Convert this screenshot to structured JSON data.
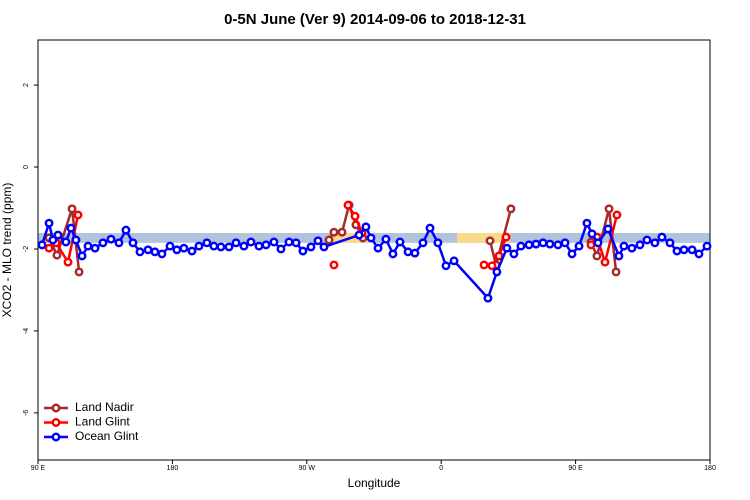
{
  "chart_data": {
    "type": "line",
    "title": "0-5N June (Ver 9)   2014-09-06 to 2018-12-31",
    "x_label": "Longitude",
    "y_label": "XCO2 - MLO trend (ppm)",
    "xlim": [
      90,
      540
    ],
    "ylim": [
      -7.15,
      3.1
    ],
    "xticks": [
      {
        "value": 90,
        "label": "90 E"
      },
      {
        "value": 180,
        "label": "180"
      },
      {
        "value": 270,
        "label": "90 W"
      },
      {
        "value": 360,
        "label": "0"
      },
      {
        "value": 450,
        "label": "90 E"
      },
      {
        "value": 540,
        "label": "180"
      }
    ],
    "yticks": [
      -6,
      -4,
      -2,
      0,
      2
    ],
    "legend": "bottom-left",
    "bands": [
      {
        "color": "#b0c4de",
        "x": [
          90,
          540
        ],
        "y": [
          -1.61,
          -1.85
        ]
      },
      {
        "color": "#fbd98a",
        "x": [
          285.5,
          312.3
        ],
        "y": [
          -1.61,
          -1.85
        ]
      },
      {
        "color": "#fbd98a",
        "x": [
          370.6,
          406.0
        ],
        "y": [
          -1.61,
          -1.85
        ]
      }
    ],
    "series": [
      {
        "name": "Land Nadir",
        "color": "#a52a2a",
        "x": [
          97.4,
          102.7,
          112.8,
          117.5,
          null,
          284.9,
          288.2,
          293.6,
          298.3,
          302.9,
          307.6,
          null,
          392.7,
          396.7,
          406.7,
          null,
          460.3,
          464.3,
          472.4,
          477.1
        ],
        "values": [
          -1.73,
          -2.15,
          -1.02,
          -2.56,
          null,
          -1.78,
          -1.59,
          -1.59,
          -0.93,
          -1.41,
          -1.73,
          null,
          -1.8,
          -2.39,
          -1.02,
          null,
          -1.83,
          -2.17,
          -1.02,
          -2.56
        ]
      },
      {
        "name": "Land Glint",
        "color": "#ff0000",
        "x": [
          97.4,
          102.1,
          110.1,
          116.8,
          null,
          288.2,
          null,
          297.6,
          302.3,
          307.0,
          null,
          388.7,
          394.0,
          398.7,
          403.4,
          null,
          460.3,
          464.3,
          469.7,
          477.7
        ],
        "values": [
          -1.98,
          -1.85,
          -2.32,
          -1.17,
          null,
          -2.39,
          null,
          -0.93,
          -1.2,
          -1.61,
          null,
          -2.39,
          -2.41,
          -2.17,
          -1.71,
          null,
          -1.9,
          -1.71,
          -2.32,
          -1.17
        ]
      },
      {
        "name": "Ocean Glint",
        "color": "#0000ff",
        "x": [
          92.7,
          97.4,
          100.0,
          103.4,
          108.7,
          112.1,
          115.4,
          119.5,
          123.5,
          128.2,
          133.5,
          138.9,
          144.2,
          148.9,
          153.6,
          158.3,
          163.7,
          168.3,
          173.0,
          178.4,
          183.0,
          187.7,
          193.1,
          197.8,
          203.1,
          207.8,
          212.5,
          217.9,
          222.6,
          227.9,
          232.6,
          238.0,
          242.7,
          248.0,
          252.7,
          258.1,
          262.8,
          267.4,
          272.8,
          277.5,
          281.5,
          305.0,
          309.6,
          313.0,
          317.7,
          323.0,
          327.7,
          332.4,
          337.8,
          342.4,
          347.8,
          352.5,
          357.8,
          363.2,
          368.6,
          391.3,
          397.3,
          404.0,
          408.7,
          413.4,
          418.8,
          423.5,
          428.2,
          432.8,
          438.2,
          442.9,
          447.6,
          452.3,
          457.6,
          461.0,
          465.0,
          471.7,
          479.0,
          482.4,
          487.7,
          493.1,
          497.8,
          503.1,
          507.8,
          513.2,
          517.9,
          522.6,
          528.0,
          532.6,
          538.0
        ],
        "values": [
          -1.9,
          -1.37,
          -1.78,
          -1.66,
          -1.83,
          -1.49,
          -1.78,
          -2.17,
          -1.93,
          -1.98,
          -1.85,
          -1.76,
          -1.85,
          -1.54,
          -1.85,
          -2.07,
          -2.02,
          -2.07,
          -2.12,
          -1.93,
          -2.02,
          -1.98,
          -2.05,
          -1.93,
          -1.85,
          -1.93,
          -1.95,
          -1.95,
          -1.85,
          -1.93,
          -1.83,
          -1.93,
          -1.9,
          -1.83,
          -2.0,
          -1.83,
          -1.85,
          -2.05,
          -1.95,
          -1.8,
          -1.95,
          -1.66,
          -1.46,
          -1.73,
          -1.98,
          -1.76,
          -2.12,
          -1.83,
          -2.07,
          -2.1,
          -1.85,
          -1.49,
          -1.85,
          -2.41,
          -2.29,
          -3.2,
          -2.56,
          -1.98,
          -2.12,
          -1.93,
          -1.9,
          -1.88,
          -1.85,
          -1.88,
          -1.9,
          -1.85,
          -2.12,
          -1.93,
          -1.37,
          -1.63,
          -1.85,
          -1.51,
          -2.17,
          -1.93,
          -1.98,
          -1.9,
          -1.78,
          -1.85,
          -1.71,
          -1.85,
          -2.05,
          -2.02,
          -2.02,
          -2.12,
          -1.93
        ]
      }
    ]
  }
}
